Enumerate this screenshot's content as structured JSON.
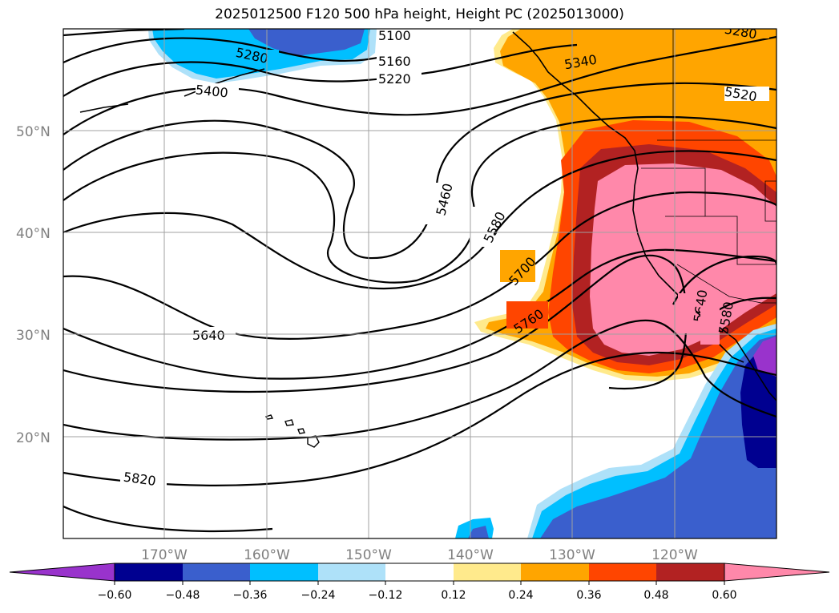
{
  "title": "2025012500 F120 500 hPa height, Height PC (2025013000)",
  "map": {
    "lat_labels": [
      "50°N",
      "40°N",
      "30°N",
      "20°N"
    ],
    "lon_labels": [
      "170°W",
      "160°W",
      "150°W",
      "140°W",
      "130°W",
      "120°W"
    ],
    "contour_labels": [
      "5100",
      "5160",
      "5220",
      "5280",
      "5280",
      "5340",
      "5400",
      "5460",
      "5520",
      "5580",
      "5640",
      "5640",
      "5700",
      "5760",
      "5820",
      "5580"
    ]
  },
  "colorbar": {
    "ticks": [
      "−0.60",
      "−0.48",
      "−0.36",
      "−0.24",
      "−0.12",
      "0.12",
      "0.24",
      "0.36",
      "0.48",
      "0.60"
    ],
    "colors": [
      "#9933cc",
      "#000090",
      "#3a5fcd",
      "#00bfff",
      "#aee1f9",
      "#ffffff",
      "#ffea8c",
      "#ffa500",
      "#ff4500",
      "#b22222",
      "#ff88aa"
    ]
  }
}
